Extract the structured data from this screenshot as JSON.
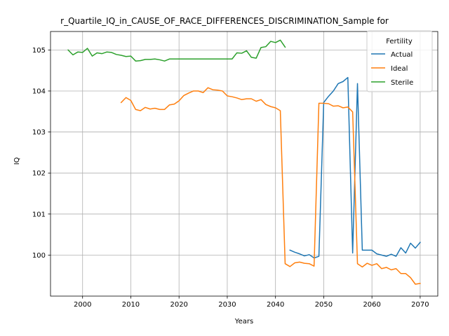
{
  "chart_data": {
    "type": "line",
    "title": "r_Quartile_IQ_in_CAUSE_OF_RACE_DIFFERENCES_DISCRIMINATION_Sample for",
    "xlabel": "Years",
    "ylabel": "IQ",
    "xlim": [
      1993.35,
      2073.65
    ],
    "ylim": [
      99.0,
      105.45
    ],
    "xticks": [
      2000,
      2010,
      2020,
      2030,
      2040,
      2050,
      2060,
      2070
    ],
    "yticks": [
      100,
      101,
      102,
      103,
      104,
      105
    ],
    "grid": true,
    "legend_title": "Fertility",
    "legend_position": "upper-right",
    "series": [
      {
        "name": "Actual",
        "color": "#1f77b4",
        "x": [
          2043,
          2044,
          2045,
          2046,
          2047,
          2048,
          2049,
          2050,
          2051,
          2052,
          2053,
          2054,
          2055,
          2056,
          2057,
          2058,
          2059,
          2060,
          2061,
          2062,
          2063,
          2064,
          2065,
          2066,
          2067,
          2068,
          2069,
          2070
        ],
        "y": [
          100.12,
          100.07,
          100.03,
          99.98,
          100.01,
          99.93,
          99.97,
          103.72,
          103.87,
          104.0,
          104.18,
          104.23,
          104.33,
          100.05,
          104.18,
          100.12,
          100.12,
          100.12,
          100.03,
          100.0,
          99.97,
          100.02,
          99.97,
          100.18,
          100.05,
          100.29,
          100.17,
          100.31
        ]
      },
      {
        "name": "Ideal",
        "color": "#ff7f0e",
        "x": [
          2008,
          2009,
          2010,
          2011,
          2012,
          2013,
          2014,
          2015,
          2016,
          2017,
          2018,
          2019,
          2020,
          2021,
          2022,
          2023,
          2024,
          2025,
          2026,
          2027,
          2028,
          2029,
          2030,
          2031,
          2032,
          2033,
          2034,
          2035,
          2036,
          2037,
          2038,
          2039,
          2040,
          2041,
          2042,
          2043,
          2044,
          2045,
          2046,
          2047,
          2048,
          2049,
          2050,
          2051,
          2052,
          2053,
          2054,
          2055,
          2056,
          2057,
          2058,
          2059,
          2060,
          2061,
          2062,
          2063,
          2064,
          2065,
          2066,
          2067,
          2068,
          2069,
          2070
        ],
        "y": [
          103.72,
          103.84,
          103.77,
          103.55,
          103.52,
          103.6,
          103.56,
          103.58,
          103.55,
          103.55,
          103.66,
          103.68,
          103.76,
          103.89,
          103.95,
          104.0,
          104.0,
          103.96,
          104.08,
          104.03,
          104.02,
          104.0,
          103.88,
          103.86,
          103.83,
          103.79,
          103.81,
          103.81,
          103.75,
          103.79,
          103.67,
          103.62,
          103.59,
          103.52,
          99.79,
          99.72,
          99.81,
          99.83,
          99.8,
          99.79,
          99.73,
          103.7,
          103.7,
          103.69,
          103.63,
          103.64,
          103.59,
          103.61,
          103.49,
          99.79,
          99.71,
          99.8,
          99.75,
          99.79,
          99.67,
          99.7,
          99.64,
          99.67,
          99.55,
          99.55,
          99.45,
          99.29,
          99.31
        ]
      },
      {
        "name": "Sterile",
        "color": "#2ca02c",
        "x": [
          1997,
          1998,
          1999,
          2000,
          2001,
          2002,
          2003,
          2004,
          2005,
          2006,
          2007,
          2008,
          2009,
          2010,
          2011,
          2012,
          2013,
          2014,
          2015,
          2016,
          2017,
          2018,
          2019,
          2020,
          2021,
          2022,
          2023,
          2024,
          2025,
          2026,
          2027,
          2028,
          2029,
          2030,
          2031,
          2032,
          2033,
          2034,
          2035,
          2036,
          2037,
          2038,
          2039,
          2040,
          2041,
          2042
        ],
        "y": [
          105.0,
          104.88,
          104.95,
          104.94,
          105.04,
          104.85,
          104.93,
          104.91,
          104.95,
          104.94,
          104.89,
          104.87,
          104.84,
          104.85,
          104.73,
          104.74,
          104.77,
          104.77,
          104.78,
          104.76,
          104.73,
          104.78,
          104.78,
          104.78,
          104.78,
          104.78,
          104.78,
          104.78,
          104.78,
          104.78,
          104.78,
          104.78,
          104.78,
          104.78,
          104.78,
          104.93,
          104.92,
          104.98,
          104.82,
          104.8,
          105.06,
          105.08,
          105.21,
          105.18,
          105.24,
          105.07
        ]
      }
    ]
  }
}
